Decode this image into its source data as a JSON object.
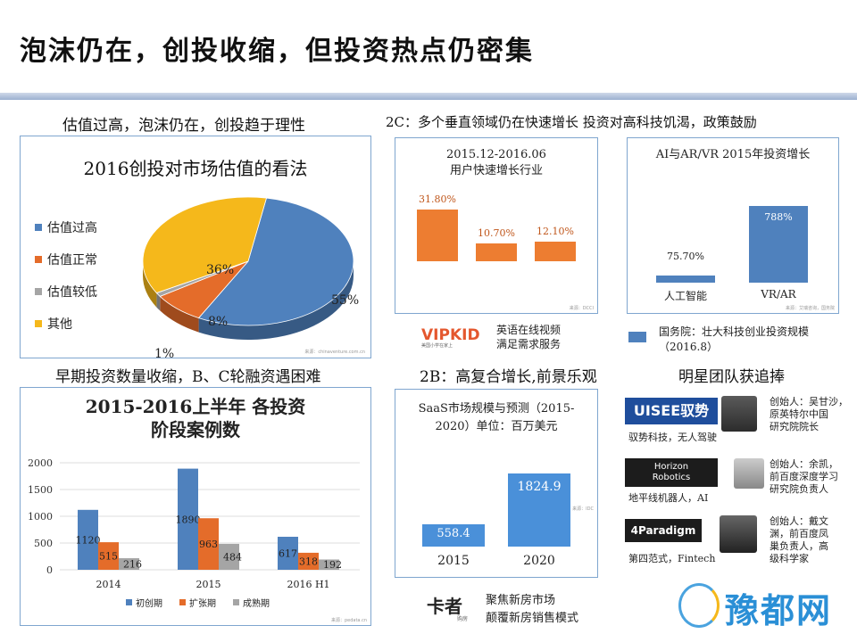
{
  "page": {
    "title": "泡沫仍在，创投收缩，但投资热点仍密集"
  },
  "sections": {
    "top_left": "估值过高，泡沫仍在，创投趋于理性",
    "top_right": "2C：多个垂直领域仍在快速增长 投资对高科技饥渴，政策鼓励",
    "bottom_left": "早期投资数量收缩，B、C轮融资遇困难",
    "bottom_mid": "2B：高复合增长,前景乐观",
    "bottom_right": "明星团队获追捧"
  },
  "pie": {
    "title": "2016创投对市场估值的看法",
    "source": "来源：chinaventure.com.cn"
  },
  "growth": {
    "title": "2015.12-2016.06\n用户快速增长行业",
    "source": "来源：DCCI",
    "logo": "VIPKID",
    "logo_sub": "美国小学在家上",
    "caption": "英语在线视频\n满足需求服务"
  },
  "aivr": {
    "title": "AI与AR/VR 2015年投资增长",
    "source": "来源：艾瑞咨询，国务院",
    "policy": "国务院：壮大科技创业投资规模（2016.8）"
  },
  "stage": {
    "title": "2015-2016上半年 各投资阶段案例数",
    "source": "来源：pedata.cn"
  },
  "saas": {
    "title": "SaaS市场规模与预测（2015-2020）单位：百万美元",
    "source": "来源：IDC",
    "logo": "卡者",
    "logo_sub": "购房",
    "caption": "聚焦新房市场\n颠覆新房销售模式"
  },
  "teams": [
    {
      "logo": "UISEE驭势",
      "caption": "驭势科技，无人驾驶",
      "founder": "创始人：吴甘沙，\n原英特尔中国\n研究院院长",
      "color": "#1f4e9c"
    },
    {
      "logo": "Horizon\nRobotics",
      "caption": "地平线机器人，AI",
      "founder": "创始人：余凯，\n前百度深度学习\n研究院负责人",
      "color": "#1c1c1c"
    },
    {
      "logo": "4Paradigm",
      "caption": "第四范式，Fintech",
      "founder": "创始人：戴文\n渊，前百度凤\n巢负责人，高\n级科学家",
      "color": "#1c1c1c"
    }
  ],
  "watermark": "豫都网",
  "chart_data": [
    {
      "type": "pie",
      "title": "2016创投对市场估值的看法",
      "categories": [
        "估值过高",
        "估值正常",
        "估值较低",
        "其他"
      ],
      "values": [
        55,
        8,
        1,
        36
      ],
      "labels": [
        "55%",
        "8%",
        "1%",
        "36%"
      ],
      "colors": [
        "#4f81bd",
        "#e46c2a",
        "#a5a5a5",
        "#f5b81b"
      ],
      "legend": "left"
    },
    {
      "type": "bar",
      "title": "2015.12-2016.06 用户快速增长行业",
      "categories": [
        "",
        "",
        ""
      ],
      "values": [
        31.8,
        10.7,
        12.1
      ],
      "labels": [
        "31.80%",
        "10.70%",
        "12.10%"
      ],
      "color": "#ed7d31"
    },
    {
      "type": "bar",
      "title": "AI与AR/VR 2015年投资增长",
      "categories": [
        "人工智能",
        "VR/AR"
      ],
      "values": [
        75.7,
        788
      ],
      "labels": [
        "75.70%",
        "788%"
      ],
      "color": "#4f81bd"
    },
    {
      "type": "bar",
      "title": "2015-2016上半年 各投资阶段案例数",
      "categories": [
        "2014",
        "2015",
        "2016 H1"
      ],
      "series": [
        {
          "name": "初创期",
          "values": [
            1120,
            1890,
            617
          ],
          "color": "#4f81bd"
        },
        {
          "name": "扩张期",
          "values": [
            515,
            963,
            318
          ],
          "color": "#e46c2a"
        },
        {
          "name": "成熟期",
          "values": [
            216,
            484,
            192
          ],
          "color": "#a5a5a5"
        }
      ],
      "ylim": [
        0,
        2000
      ],
      "yticks": [
        0,
        500,
        1000,
        1500,
        2000
      ],
      "legend": "bottom"
    },
    {
      "type": "bar",
      "title": "SaaS市场规模与预测（2015-2020）单位：百万美元",
      "categories": [
        "2015",
        "2020"
      ],
      "values": [
        558.4,
        1824.9
      ],
      "labels": [
        "558.4",
        "1824.9"
      ],
      "color": "#4a90d9"
    }
  ]
}
